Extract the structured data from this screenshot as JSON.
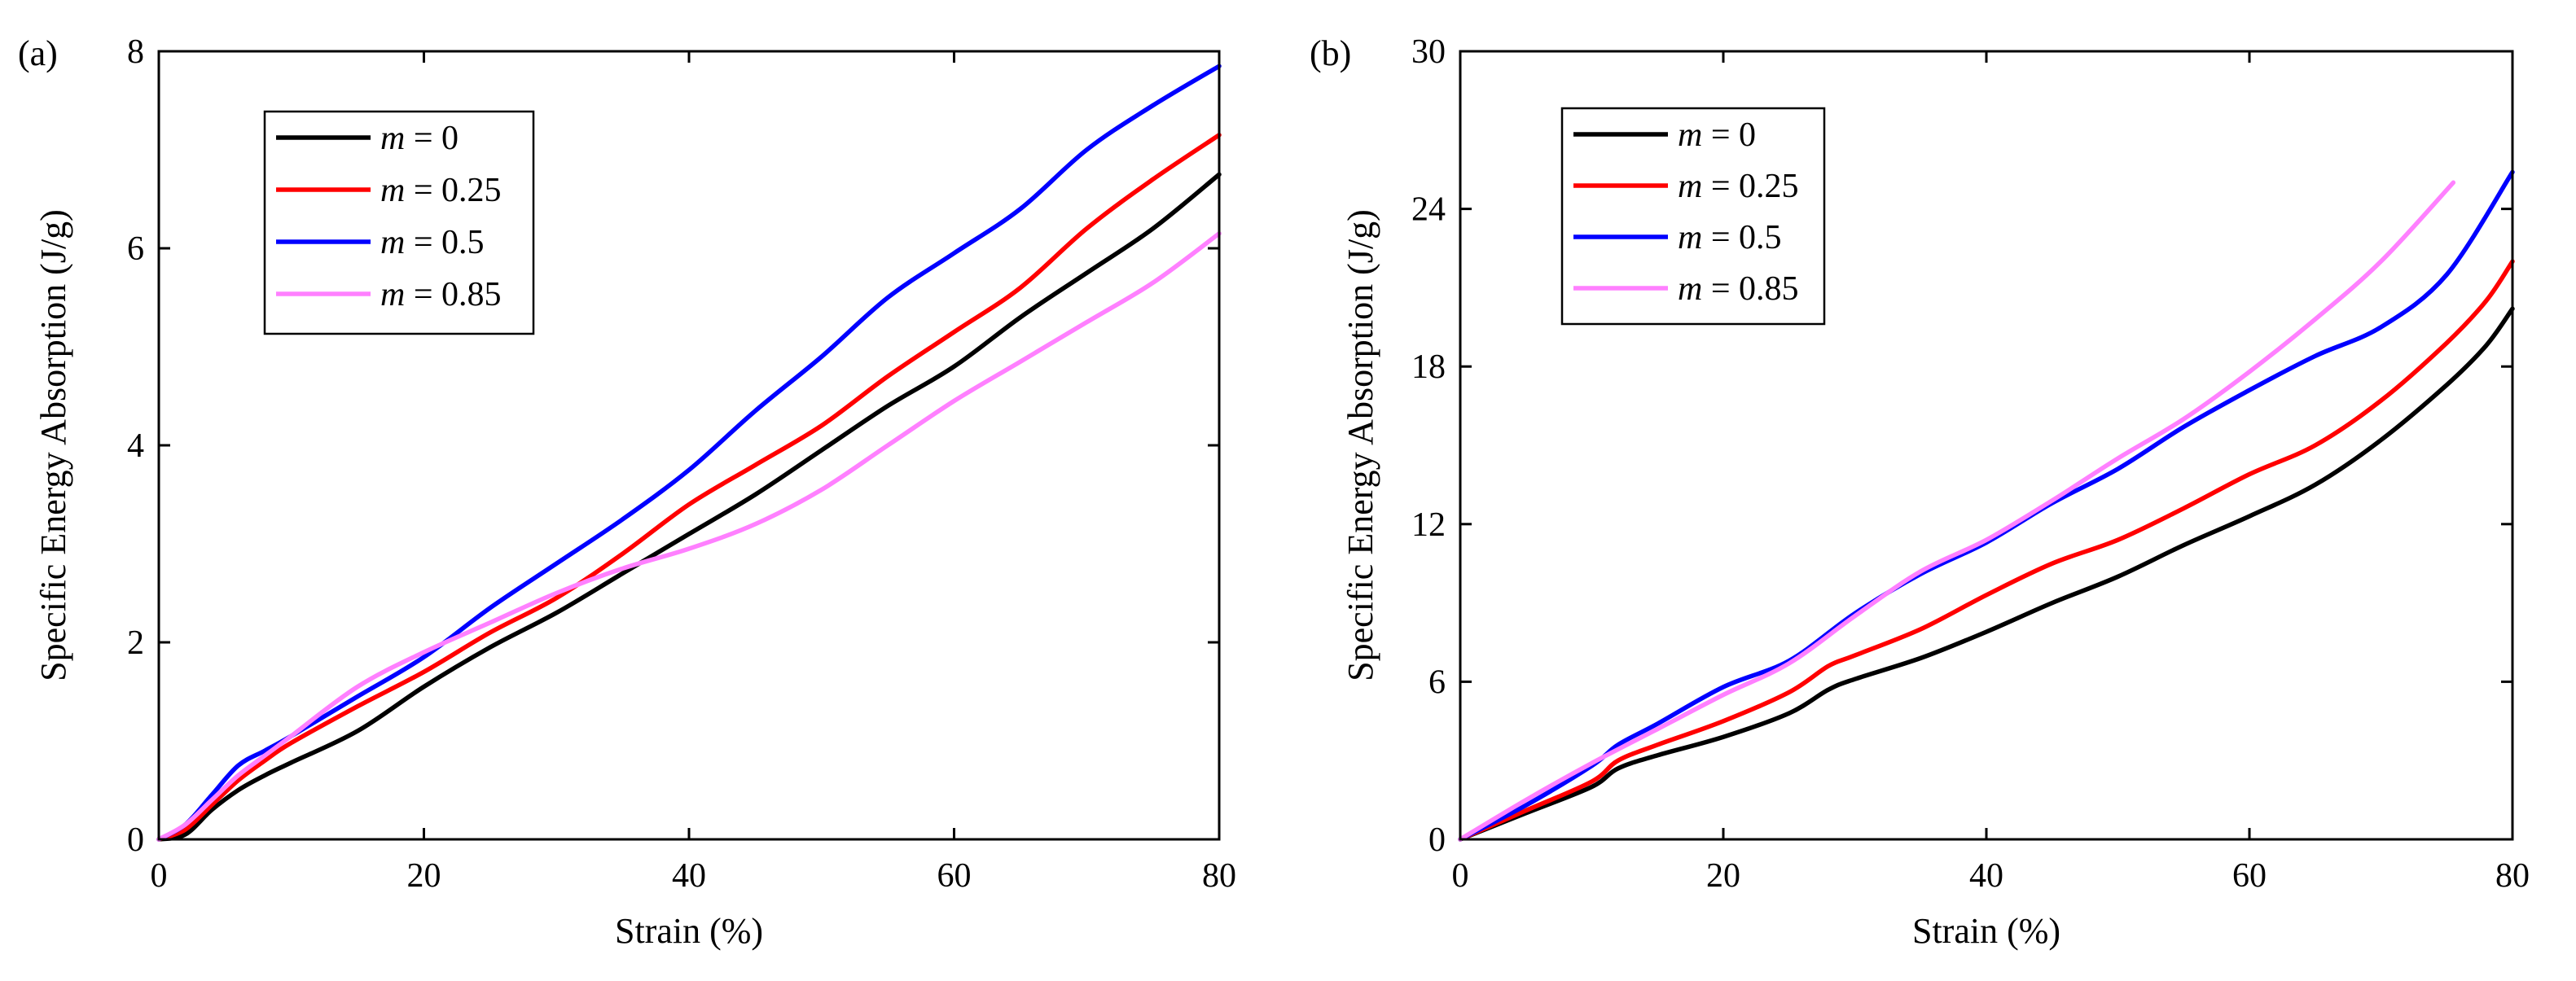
{
  "chart_data": [
    {
      "type": "line",
      "panel": "(a)",
      "title": "",
      "xlabel": "Strain (%)",
      "ylabel": "Specific Energy Absorption (J/g)",
      "xlim": [
        0,
        80
      ],
      "ylim": [
        0,
        8
      ],
      "xticks": [
        "0",
        "20",
        "40",
        "60",
        "80"
      ],
      "yticks": [
        "0",
        "2",
        "4",
        "6",
        "8"
      ],
      "legend": {
        "placement": "top-left",
        "prefix": "m",
        "symbol": " = "
      },
      "series": [
        {
          "name": "m = 0",
          "value_label": "0",
          "color": "#000000",
          "x": [
            0,
            2,
            4,
            6,
            8,
            10,
            15,
            20,
            25,
            30,
            35,
            40,
            45,
            50,
            55,
            60,
            65,
            70,
            75,
            80
          ],
          "y": [
            0,
            0.05,
            0.3,
            0.5,
            0.65,
            0.78,
            1.1,
            1.55,
            1.95,
            2.3,
            2.7,
            3.1,
            3.5,
            3.95,
            4.4,
            4.8,
            5.3,
            5.75,
            6.2,
            6.75
          ]
        },
        {
          "name": "m = 0.25",
          "value_label": "0.25",
          "color": "#ff0000",
          "x": [
            0,
            2,
            4,
            6,
            8,
            10,
            15,
            20,
            25,
            30,
            35,
            40,
            45,
            50,
            55,
            60,
            65,
            70,
            75,
            80
          ],
          "y": [
            0,
            0.1,
            0.35,
            0.6,
            0.8,
            0.98,
            1.35,
            1.7,
            2.1,
            2.45,
            2.9,
            3.4,
            3.8,
            4.2,
            4.7,
            5.15,
            5.6,
            6.2,
            6.7,
            7.15
          ]
        },
        {
          "name": "m = 0.5",
          "value_label": "0.5",
          "color": "#0000ff",
          "x": [
            0,
            2,
            4,
            6,
            8,
            10,
            15,
            20,
            25,
            30,
            35,
            40,
            45,
            50,
            55,
            60,
            65,
            70,
            75,
            80
          ],
          "y": [
            0,
            0.15,
            0.45,
            0.75,
            0.9,
            1.05,
            1.45,
            1.85,
            2.35,
            2.8,
            3.25,
            3.75,
            4.35,
            4.9,
            5.5,
            5.95,
            6.4,
            7.0,
            7.45,
            7.85
          ]
        },
        {
          "name": "m = 0.85",
          "value_label": "0.85",
          "color": "#ff80ff",
          "x": [
            0,
            2,
            4,
            6,
            8,
            10,
            15,
            20,
            25,
            30,
            35,
            40,
            45,
            50,
            55,
            60,
            65,
            70,
            75,
            80
          ],
          "y": [
            0,
            0.15,
            0.4,
            0.65,
            0.85,
            1.05,
            1.55,
            1.9,
            2.2,
            2.5,
            2.75,
            2.95,
            3.2,
            3.55,
            4.0,
            4.45,
            4.85,
            5.25,
            5.65,
            6.15
          ]
        }
      ]
    },
    {
      "type": "line",
      "panel": "(b)",
      "title": "",
      "xlabel": "Strain (%)",
      "ylabel": "Specific Energy Absorption (J/g)",
      "xlim": [
        0,
        80
      ],
      "ylim": [
        0,
        30
      ],
      "xticks": [
        "0",
        "20",
        "40",
        "60",
        "80"
      ],
      "yticks": [
        "0",
        "6",
        "12",
        "18",
        "24",
        "30"
      ],
      "legend": {
        "placement": "top-left",
        "prefix": "m",
        "symbol": " = "
      },
      "series": [
        {
          "name": "m = 0",
          "value_label": "0",
          "color": "#000000",
          "x": [
            0,
            5,
            10,
            12,
            15,
            20,
            25,
            28,
            30,
            35,
            40,
            45,
            50,
            55,
            60,
            65,
            70,
            75,
            78,
            80
          ],
          "y": [
            0,
            1.0,
            2.0,
            2.7,
            3.2,
            3.9,
            4.8,
            5.7,
            6.1,
            6.9,
            7.9,
            9.0,
            10.0,
            11.2,
            12.3,
            13.5,
            15.2,
            17.3,
            18.8,
            20.2
          ]
        },
        {
          "name": "m = 0.25",
          "value_label": "0.25",
          "color": "#ff0000",
          "x": [
            0,
            5,
            10,
            12,
            15,
            20,
            25,
            28,
            30,
            35,
            40,
            45,
            50,
            55,
            60,
            65,
            70,
            75,
            78,
            80
          ],
          "y": [
            0,
            1.1,
            2.2,
            3.0,
            3.6,
            4.5,
            5.6,
            6.6,
            7.0,
            8.0,
            9.3,
            10.5,
            11.4,
            12.6,
            13.9,
            15.0,
            16.7,
            18.9,
            20.5,
            22.0
          ]
        },
        {
          "name": "m = 0.5",
          "value_label": "0.5",
          "color": "#0000ff",
          "x": [
            0,
            5,
            10,
            12,
            15,
            20,
            25,
            30,
            35,
            40,
            45,
            50,
            55,
            60,
            65,
            70,
            75,
            80
          ],
          "y": [
            0,
            1.3,
            2.8,
            3.6,
            4.4,
            5.8,
            6.8,
            8.6,
            10.1,
            11.3,
            12.8,
            14.1,
            15.7,
            17.1,
            18.4,
            19.5,
            21.5,
            25.4
          ]
        },
        {
          "name": "m = 0.85",
          "value_label": "0.85",
          "color": "#ff80ff",
          "x": [
            0,
            5,
            10,
            15,
            20,
            25,
            30,
            35,
            40,
            45,
            50,
            55,
            60,
            65,
            70,
            75.5
          ],
          "y": [
            0,
            1.5,
            2.9,
            4.2,
            5.5,
            6.7,
            8.5,
            10.2,
            11.4,
            12.9,
            14.5,
            16.0,
            17.8,
            19.8,
            22.0,
            25.0
          ]
        }
      ]
    }
  ]
}
